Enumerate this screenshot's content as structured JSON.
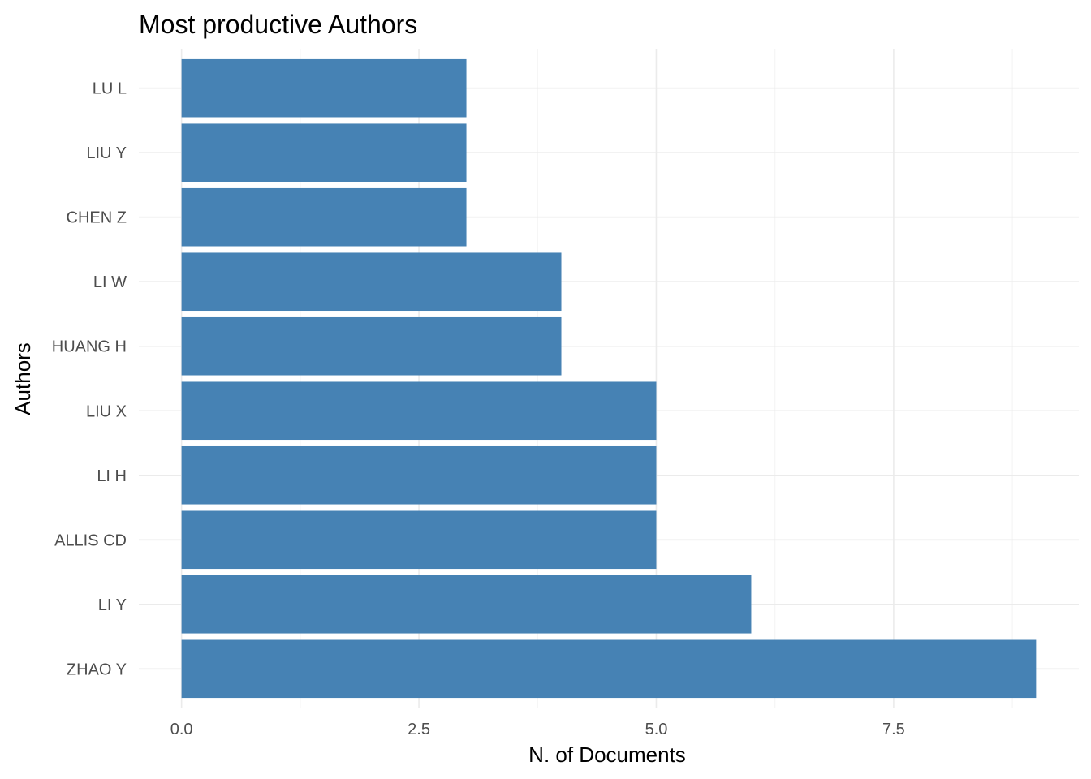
{
  "chart_data": {
    "type": "bar",
    "orientation": "horizontal",
    "title": "Most productive Authors",
    "xlabel": "N. of Documents",
    "ylabel": "Authors",
    "categories": [
      "ZHAO Y",
      "LI Y",
      "ALLIS CD",
      "LI H",
      "LIU X",
      "HUANG H",
      "LI W",
      "CHEN Z",
      "LIU Y",
      "LU L"
    ],
    "values": [
      9,
      6,
      5,
      5,
      5,
      4,
      4,
      3,
      3,
      3
    ],
    "xlim": [
      -0.45,
      9.45
    ],
    "xticks": [
      0.0,
      2.5,
      5.0,
      7.5
    ],
    "xtick_labels": [
      "0.0",
      "2.5",
      "5.0",
      "7.5"
    ],
    "bar_color": "#4682b4",
    "grid": true,
    "legend": "none"
  }
}
